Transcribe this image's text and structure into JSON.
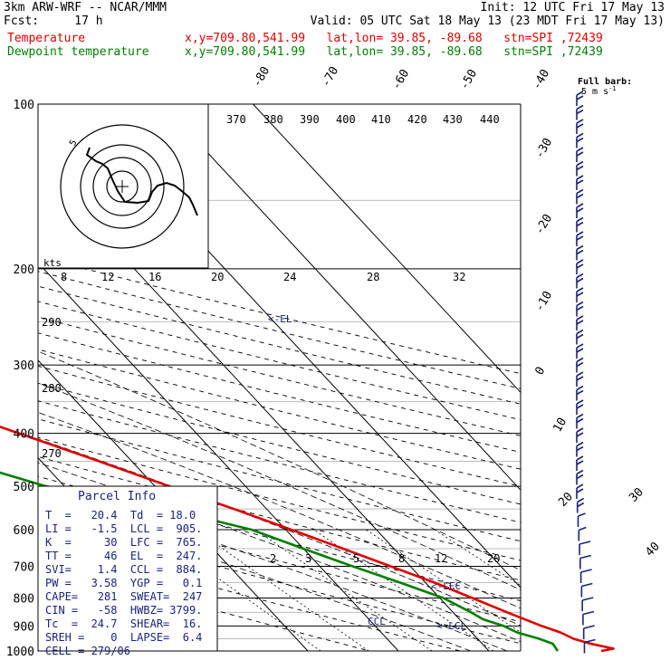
{
  "header": {
    "model": "3km ARW-WRF -- NCAR/MMM",
    "init": "Init: 12 UTC Fri 17 May 13",
    "fcst_label": "Fcst:",
    "fcst_value": "17 h",
    "valid": "Valid: 05 UTC Sat 18 May 13 (23 MDT Fri 17 May 13)",
    "temp_label": "Temperature",
    "dew_label": "Dewpoint temperature",
    "temp_info": "x,y=709.80,541.99   lat,lon= 39.85, -89.68   stn=SPI ,72439",
    "dew_info": "x,y=709.80,541.99   lat,lon= 39.85, -89.68   stn=SPI ,72439"
  },
  "wind_key": {
    "title": "Full barb:",
    "value": "5 m s",
    "exp": "-1"
  },
  "hodograph": {
    "unit_label": "kts",
    "ring_label": "5"
  },
  "parcel_info": {
    "title": "Parcel Info",
    "rows": [
      "T  =   20.4  Td  = 18.0",
      "LI =   -1.5  LCL =  905.",
      "K  =     30  LFC =  765.",
      "TT =     46  EL  =  247.",
      "SVI=    1.4  CCL =  884.",
      "PW =   3.58  YGP =   0.1",
      "CAPE=   281  SWEAT=  247",
      "CIN =   -58  HWBZ= 3799.",
      "Tc  =  24.7  SHEAR=  16.",
      "SREH =    0  LAPSE=  6.4",
      "CELL = 279/06"
    ]
  },
  "level_marks": {
    "el": "<-EL",
    "lfc": "<-LFC",
    "lcl": "<-LCL",
    "ccl": "CCL"
  },
  "chart_data": {
    "type": "line",
    "title": "",
    "xlabel": "",
    "ylabel": "",
    "y_scale": "log (pressure, hPa)",
    "pressure_levels": [
      100,
      200,
      300,
      400,
      500,
      600,
      700,
      800,
      900,
      1000
    ],
    "isotherm_labels": [
      "-80",
      "-70",
      "-60",
      "-50",
      "-40",
      "-30",
      "-20",
      "-10",
      "0",
      "10",
      "20",
      "30",
      "40"
    ],
    "theta_labels_top": [
      "370",
      "380",
      "390",
      "400",
      "410",
      "420",
      "430",
      "440"
    ],
    "theta_labels_left": [
      "290",
      "280",
      "270"
    ],
    "hodograph_speed_labels": [
      "8",
      "12",
      "16",
      "20",
      "24",
      "28",
      "32"
    ],
    "mixing_ratio_labels": [
      "2",
      "3",
      "5",
      "8",
      "12",
      "20"
    ],
    "series": [
      {
        "name": "Temperature",
        "color": "#e00000",
        "points": [
          [
            1000,
            22.4
          ],
          [
            990,
            24.0
          ],
          [
            970,
            22.0
          ],
          [
            950,
            20.6
          ],
          [
            925,
            19.8
          ],
          [
            900,
            18.4
          ],
          [
            850,
            16.0
          ],
          [
            800,
            13.6
          ],
          [
            750,
            11.0
          ],
          [
            700,
            7.8
          ],
          [
            650,
            4.4
          ],
          [
            600,
            0.6
          ],
          [
            550,
            -3.6
          ],
          [
            500,
            -8.4
          ],
          [
            450,
            -13.6
          ],
          [
            400,
            -19.6
          ],
          [
            350,
            -26.4
          ],
          [
            300,
            -34.6
          ],
          [
            275,
            -39.0
          ],
          [
            250,
            -44.2
          ],
          [
            225,
            -50.0
          ],
          [
            210,
            -54.0
          ],
          [
            200,
            -56.6
          ],
          [
            185,
            -58.5
          ],
          [
            170,
            -58.2
          ],
          [
            160,
            -57.4
          ],
          [
            150,
            -58.0
          ],
          [
            140,
            -60.0
          ],
          [
            130,
            -61.8
          ],
          [
            120,
            -63.6
          ],
          [
            110,
            -66.2
          ],
          [
            100,
            -69.0
          ]
        ]
      },
      {
        "name": "Dewpoint temperature",
        "color": "#008000",
        "points": [
          [
            1000,
            17.6
          ],
          [
            970,
            17.8
          ],
          [
            950,
            16.8
          ],
          [
            925,
            15.0
          ],
          [
            900,
            14.2
          ],
          [
            875,
            12.6
          ],
          [
            850,
            12.0
          ],
          [
            800,
            10.4
          ],
          [
            750,
            7.2
          ],
          [
            700,
            3.6
          ],
          [
            650,
            0.0
          ],
          [
            600,
            -3.8
          ],
          [
            550,
            -11.0
          ],
          [
            525,
            -17.0
          ],
          [
            500,
            -22.0
          ],
          [
            470,
            -26.0
          ],
          [
            450,
            -27.0
          ],
          [
            420,
            -24.0
          ],
          [
            400,
            -24.0
          ],
          [
            350,
            -32.0
          ],
          [
            300,
            -42.0
          ],
          [
            250,
            -54.0
          ],
          [
            225,
            -62.0
          ],
          [
            210,
            -68.0
          ],
          [
            200,
            -70.0
          ],
          [
            180,
            -71.0
          ],
          [
            160,
            -74.5
          ],
          [
            140,
            -78.5
          ],
          [
            125,
            -80.5
          ],
          [
            110,
            -82.2
          ],
          [
            100,
            -83.0
          ]
        ]
      }
    ],
    "isotherm_values": [
      -80,
      -70,
      -60,
      -50,
      -40,
      -30,
      -20,
      -10,
      0,
      10,
      20,
      30,
      40
    ],
    "dry_adiabat_thetas": [
      270,
      280,
      290,
      300,
      310,
      320,
      330,
      340,
      350,
      360,
      370,
      380,
      390,
      400,
      410,
      420,
      430,
      440
    ],
    "mixing_ratio_values": [
      2,
      3,
      5,
      8,
      12,
      20
    ]
  }
}
